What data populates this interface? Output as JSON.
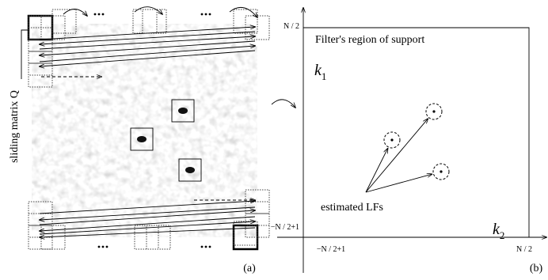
{
  "left_panel": {
    "side_label": "sliding matrix Q",
    "panel_label": "(a)"
  },
  "right_panel": {
    "top_tick": "N / 2",
    "region_label": "Filter's region of support",
    "k1": {
      "base": "k",
      "sub": "1"
    },
    "k2": {
      "base": "k",
      "sub": "2"
    },
    "annotation": "estimated LFs",
    "left_tick": "−N / 2+1",
    "bottom_left_tick": "−N / 2+1",
    "bottom_right_tick": "N / 2",
    "panel_label": "(b)"
  }
}
